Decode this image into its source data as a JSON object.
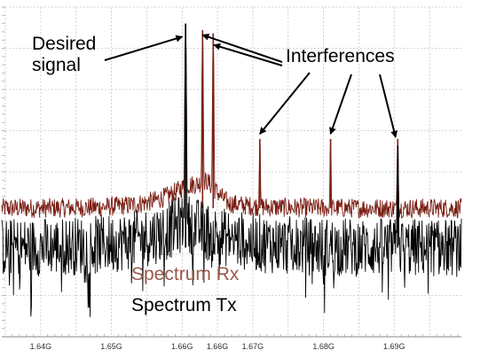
{
  "chart_data": {
    "type": "line",
    "title": "",
    "xlabel": "",
    "ylabel": "",
    "xlim": [
      1.6345,
      1.6995
    ],
    "ylim": [
      0,
      1
    ],
    "grid": true,
    "x_ticks": [
      {
        "value": 1.64,
        "label": "1.64G"
      },
      {
        "value": 1.65,
        "label": "1.65G"
      },
      {
        "value": 1.66,
        "label": "1.66G"
      },
      {
        "value": 1.665,
        "label": "1.66G"
      },
      {
        "value": 1.67,
        "label": "1.67G"
      },
      {
        "value": 1.68,
        "label": "1.68G"
      },
      {
        "value": 1.69,
        "label": "1.69G"
      }
    ],
    "series": [
      {
        "name": "Spectrum Rx",
        "color": "#7a1f14",
        "noise_floor": 0.39,
        "noise_spread": 0.03,
        "peaks": [
          {
            "x": 1.6605,
            "height": 0.95
          },
          {
            "x": 1.6629,
            "height": 0.93
          },
          {
            "x": 1.6644,
            "height": 0.92
          },
          {
            "x": 1.671,
            "height": 0.6
          },
          {
            "x": 1.681,
            "height": 0.6
          },
          {
            "x": 1.6905,
            "height": 0.6
          }
        ]
      },
      {
        "name": "Spectrum Tx",
        "color": "#000000",
        "noise_floor": 0.27,
        "noise_spread": 0.09,
        "peaks": [
          {
            "x": 1.6605,
            "height": 0.95
          },
          {
            "x": 1.6905,
            "height": 0.58
          }
        ]
      }
    ],
    "annotations": [
      {
        "text": "Desired\nsignal",
        "target_x": 1.6604,
        "target_y": 0.91
      },
      {
        "text": "Interferences",
        "targets": [
          {
            "x": 1.6629,
            "y": 0.91
          },
          {
            "x": 1.6645,
            "y": 0.88
          },
          {
            "x": 1.671,
            "y": 0.61
          },
          {
            "x": 1.681,
            "y": 0.61
          },
          {
            "x": 1.6902,
            "y": 0.6
          }
        ]
      }
    ],
    "legend": {
      "placement": "bottom-center",
      "entries": [
        "Spectrum Rx",
        "Spectrum Tx"
      ]
    }
  }
}
